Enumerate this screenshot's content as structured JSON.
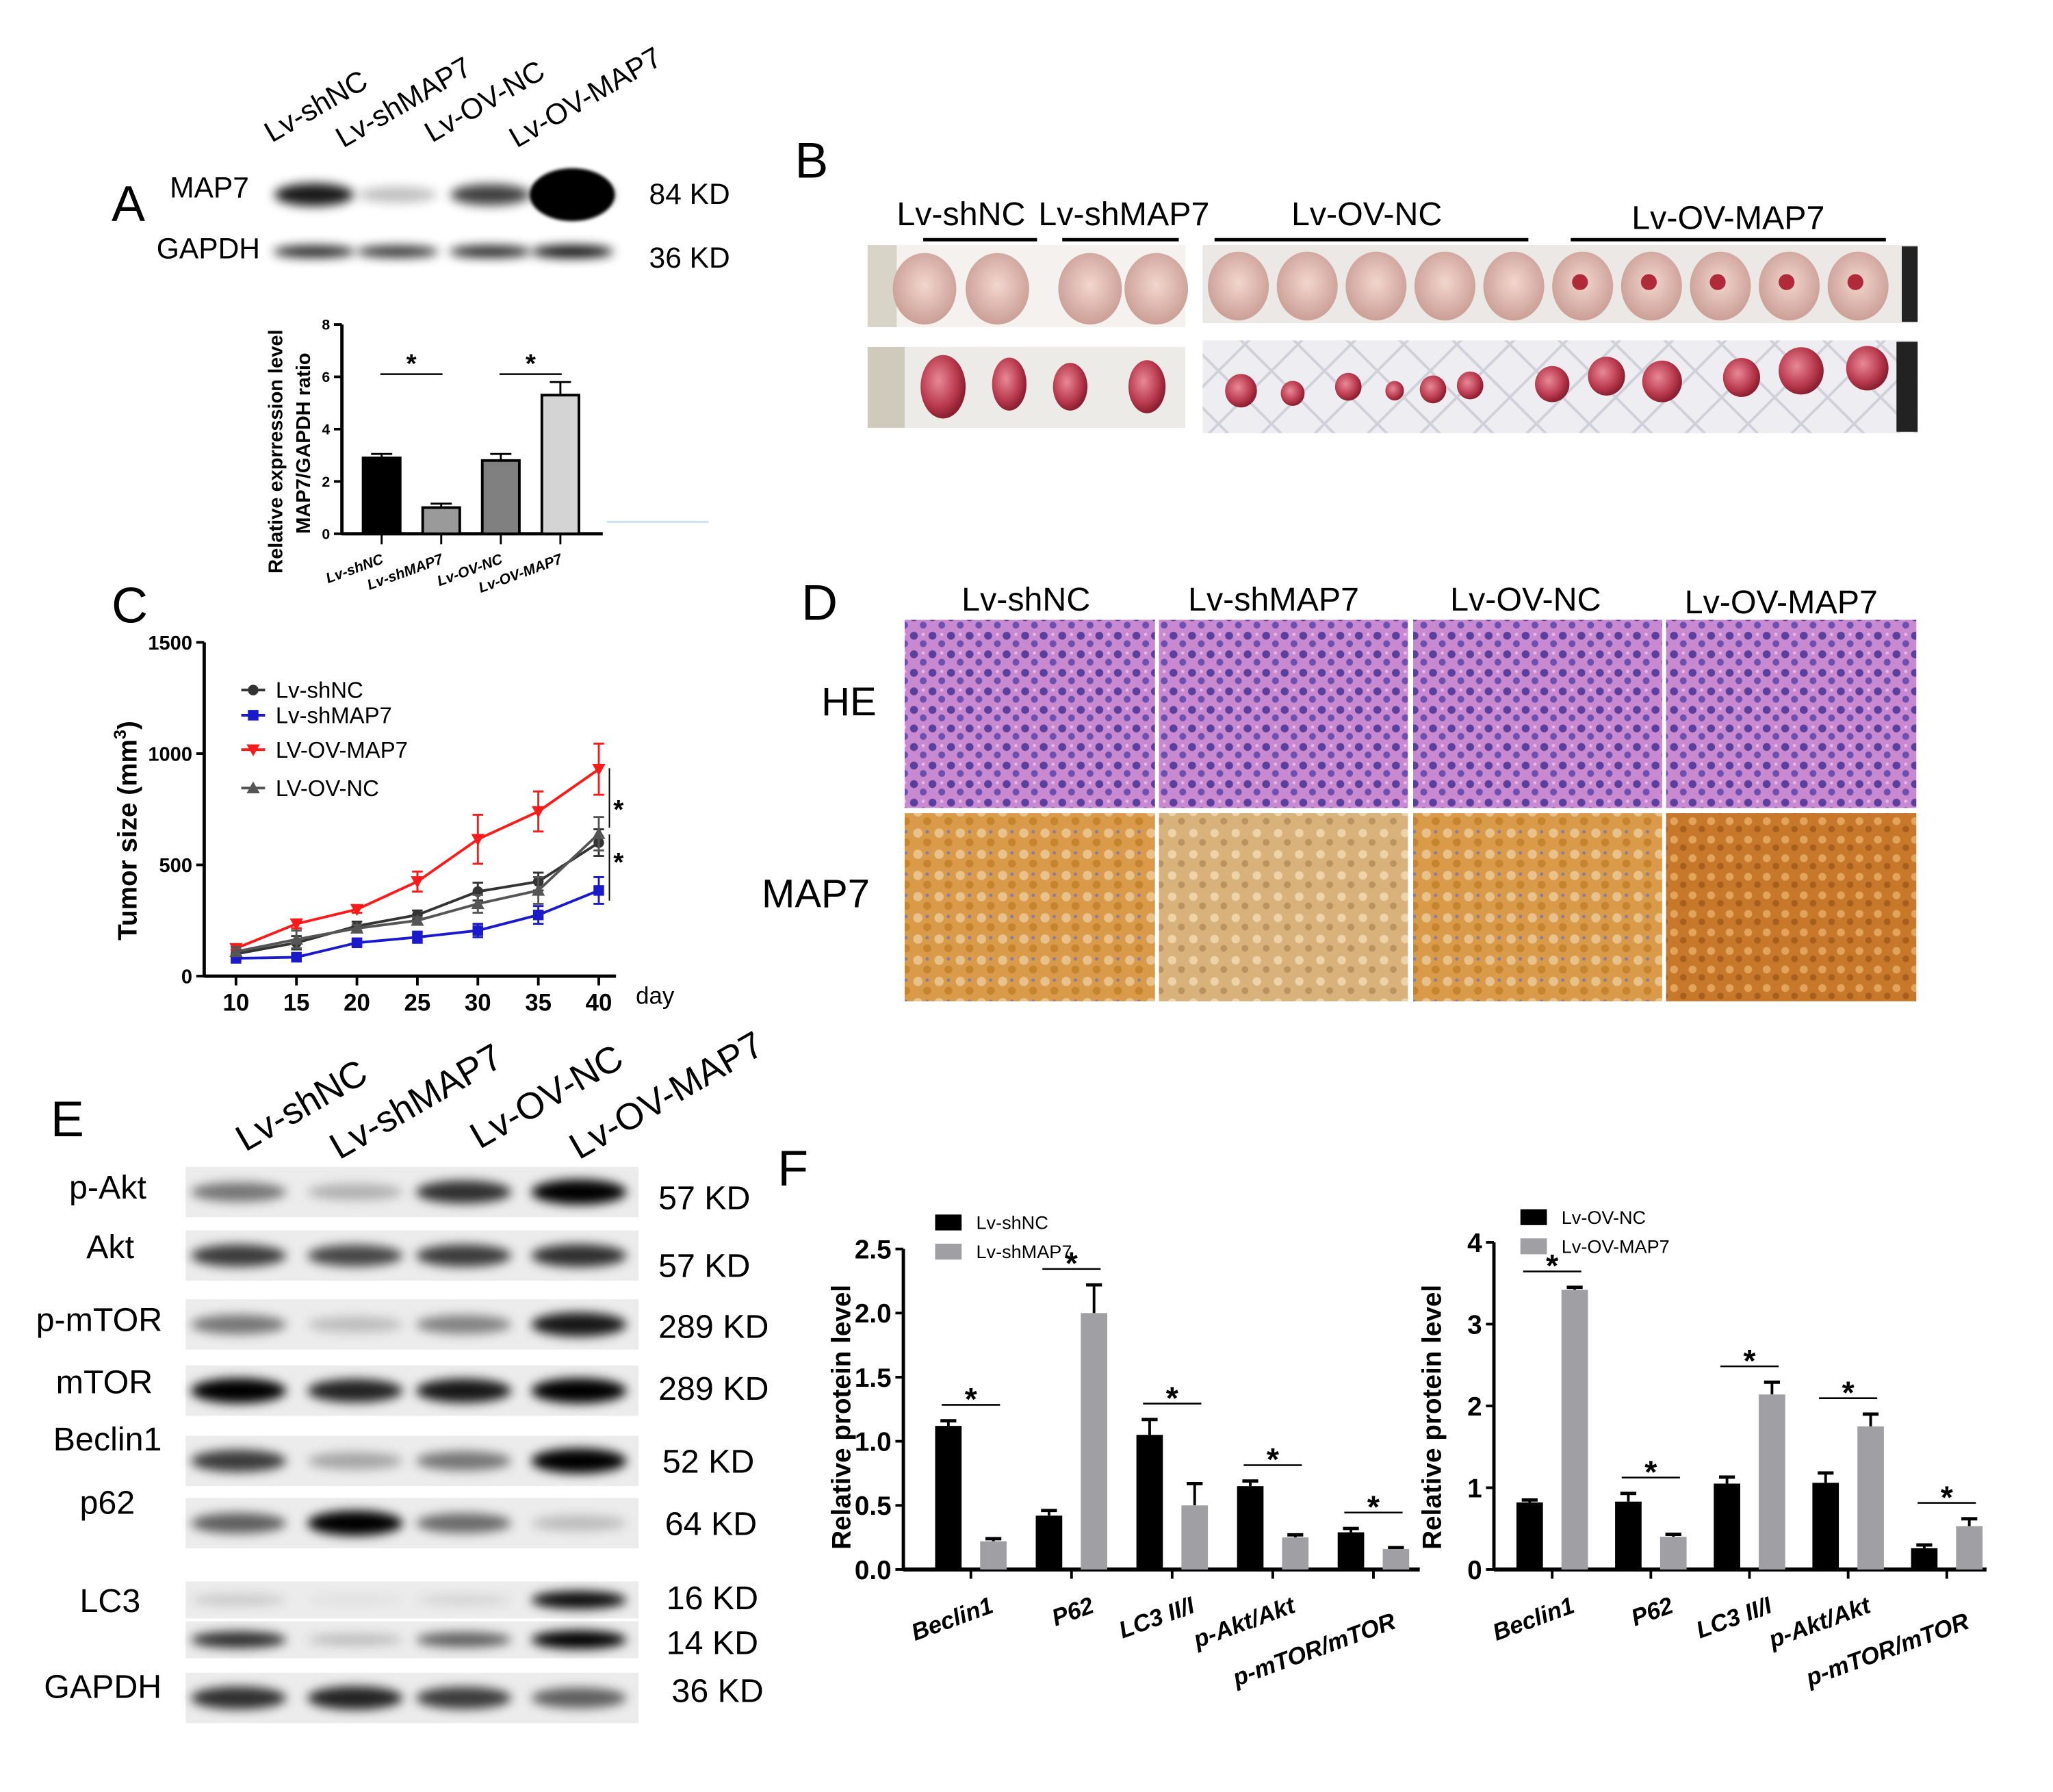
{
  "panels": {
    "A": "A",
    "B": "B",
    "C": "C",
    "D": "D",
    "E": "E",
    "F": "F"
  },
  "groups": [
    "Lv-shNC",
    "Lv-shMAP7",
    "Lv-OV-NC",
    "Lv-OV-MAP7"
  ],
  "panel_a": {
    "blot_rows": [
      {
        "label": "MAP7",
        "kd": "84 KD",
        "band_intensity": [
          0.9,
          0.25,
          0.75,
          1.0
        ]
      },
      {
        "label": "GAPDH",
        "kd": "36 KD",
        "band_intensity": [
          0.85,
          0.8,
          0.85,
          0.95
        ]
      }
    ]
  },
  "panel_b": {
    "labels": [
      "Lv-shNC",
      "Lv-shMAP7",
      "Lv-OV-NC",
      "Lv-OV-MAP7"
    ]
  },
  "panel_d": {
    "columns": [
      "Lv-shNC",
      "Lv-shMAP7",
      "Lv-OV-NC",
      "Lv-OV-MAP7"
    ],
    "rows": [
      "HE",
      "MAP7"
    ]
  },
  "panel_e": {
    "lanes": [
      "Lv-shNC",
      "Lv-shMAP7",
      "Lv-OV-NC",
      "Lv-OV-MAP7"
    ],
    "rows": [
      {
        "label": "p-Akt",
        "kd": [
          "57 KD"
        ],
        "band_intensity": [
          [
            0.5,
            0.25,
            0.8,
            1.0
          ]
        ]
      },
      {
        "label": "Akt",
        "kd": [
          "57 KD"
        ],
        "band_intensity": [
          [
            0.75,
            0.7,
            0.75,
            0.8
          ]
        ]
      },
      {
        "label": "p-mTOR",
        "kd": [
          "289 KD"
        ],
        "band_intensity": [
          [
            0.5,
            0.2,
            0.45,
            0.9
          ]
        ]
      },
      {
        "label": "mTOR",
        "kd": [
          "289 KD"
        ],
        "band_intensity": [
          [
            1.0,
            0.85,
            0.9,
            1.0
          ]
        ]
      },
      {
        "label": "Beclin1",
        "kd": [
          "52 KD"
        ],
        "band_intensity": [
          [
            0.75,
            0.3,
            0.5,
            1.0
          ]
        ]
      },
      {
        "label": "p62",
        "kd": [
          "64 KD"
        ],
        "band_intensity": [
          [
            0.6,
            1.0,
            0.55,
            0.2
          ]
        ]
      },
      {
        "label": "LC3",
        "kd": [
          "16 KD",
          "14 KD"
        ],
        "band_intensity": [
          [
            0.15,
            0.05,
            0.1,
            0.95
          ],
          [
            0.8,
            0.2,
            0.6,
            1.0
          ]
        ]
      },
      {
        "label": "GAPDH",
        "kd": [
          "36 KD"
        ],
        "band_intensity": [
          [
            0.8,
            0.85,
            0.75,
            0.6
          ]
        ]
      }
    ]
  },
  "chart_data": [
    {
      "id": "A",
      "type": "bar",
      "categories": [
        "Lv-shNC",
        "Lv-shMAP7",
        "Lv-OV-NC",
        "Lv-OV-MAP7"
      ],
      "values": [
        2.9,
        1.0,
        2.8,
        5.3
      ],
      "errors": [
        0.15,
        0.15,
        0.25,
        0.5
      ],
      "colors": [
        "#000000",
        "#9a9a9a",
        "#808080",
        "#d4d4d4"
      ],
      "ylabel": [
        "Relative exprression level",
        "MAP7/GAPDH ratio"
      ],
      "ylim": [
        0,
        8
      ],
      "yticks": [
        "0",
        "2",
        "4",
        "6",
        "8"
      ],
      "significance": [
        {
          "pair": [
            0,
            1
          ],
          "mark": "*"
        },
        {
          "pair": [
            2,
            3
          ],
          "mark": "*"
        }
      ]
    },
    {
      "id": "C",
      "type": "line",
      "x": [
        10,
        15,
        20,
        25,
        30,
        35,
        40
      ],
      "xticks": [
        "10",
        "15",
        "20",
        "25",
        "30",
        "35",
        "40"
      ],
      "xlabel": "day",
      "ylabel": "Tumor size (mm",
      "ylabel_sup": "3",
      "ylabel_end": ")",
      "ylim": [
        0,
        1500
      ],
      "yticks": [
        "0",
        "500",
        "1000",
        "1500"
      ],
      "legend": "top-left",
      "series": [
        {
          "name": "Lv-shNC",
          "marker": "circle",
          "color": "#333333",
          "values": [
            100,
            150,
            225,
            275,
            380,
            425,
            600
          ],
          "errors": [
            20,
            30,
            20,
            20,
            40,
            40,
            60
          ]
        },
        {
          "name": "Lv-shMAP7",
          "marker": "square",
          "color": "#1a1acc",
          "values": [
            80,
            85,
            150,
            175,
            205,
            275,
            385
          ],
          "errors": [
            10,
            10,
            10,
            25,
            30,
            40,
            60
          ]
        },
        {
          "name": "LV-OV-MAP7",
          "marker": "triangle-down",
          "color": "#ff1a1a",
          "values": [
            125,
            235,
            300,
            425,
            615,
            740,
            930
          ],
          "errors": [
            10,
            20,
            15,
            45,
            110,
            90,
            115
          ]
        },
        {
          "name": "LV-OV-NC",
          "marker": "triangle-up",
          "color": "#555555",
          "values": [
            110,
            165,
            215,
            250,
            325,
            385,
            640
          ],
          "errors": [
            20,
            40,
            15,
            15,
            40,
            60,
            75
          ]
        }
      ],
      "significance": [
        "*",
        "*"
      ]
    },
    {
      "id": "F1",
      "type": "bar",
      "categories": [
        "Beclin1",
        "P62",
        "LC3 II/I",
        "p-Akt/Akt",
        "p-mTOR/mTOR"
      ],
      "ylabel": "Relative protein level",
      "ylim": [
        0,
        2.5
      ],
      "yticks": [
        "0.0",
        "0.5",
        "1.0",
        "1.5",
        "2.0",
        "2.5"
      ],
      "legend": "top-left",
      "series": [
        {
          "name": "Lv-shNC",
          "color": "#000000",
          "values": [
            1.12,
            0.42,
            1.05,
            0.65,
            0.29
          ],
          "errors": [
            0.04,
            0.04,
            0.12,
            0.04,
            0.03
          ]
        },
        {
          "name": "Lv-shMAP7",
          "color": "#a0a0a4",
          "values": [
            0.22,
            2.0,
            0.5,
            0.25,
            0.16
          ],
          "errors": [
            0.02,
            0.22,
            0.17,
            0.02,
            0.01
          ]
        }
      ],
      "significance": [
        "*",
        "*",
        "*",
        "*",
        "*"
      ]
    },
    {
      "id": "F2",
      "type": "bar",
      "categories": [
        "Beclin1",
        "P62",
        "LC3 II/I",
        "p-Akt/Akt",
        "p-mTOR/mTOR"
      ],
      "ylabel": "Relative protein level",
      "ylim": [
        0,
        4
      ],
      "yticks": [
        "0",
        "1",
        "2",
        "3",
        "4"
      ],
      "legend": "top-left",
      "series": [
        {
          "name": "Lv-OV-NC",
          "color": "#000000",
          "values": [
            0.82,
            0.83,
            1.05,
            1.06,
            0.26
          ],
          "errors": [
            0.03,
            0.1,
            0.08,
            0.12,
            0.04
          ]
        },
        {
          "name": "Lv-OV-MAP7",
          "color": "#a0a0a4",
          "values": [
            3.42,
            0.4,
            2.14,
            1.75,
            0.53
          ],
          "errors": [
            0.03,
            0.03,
            0.15,
            0.15,
            0.09
          ]
        }
      ],
      "significance": [
        "*",
        "*",
        "*",
        "*",
        "*"
      ]
    }
  ]
}
